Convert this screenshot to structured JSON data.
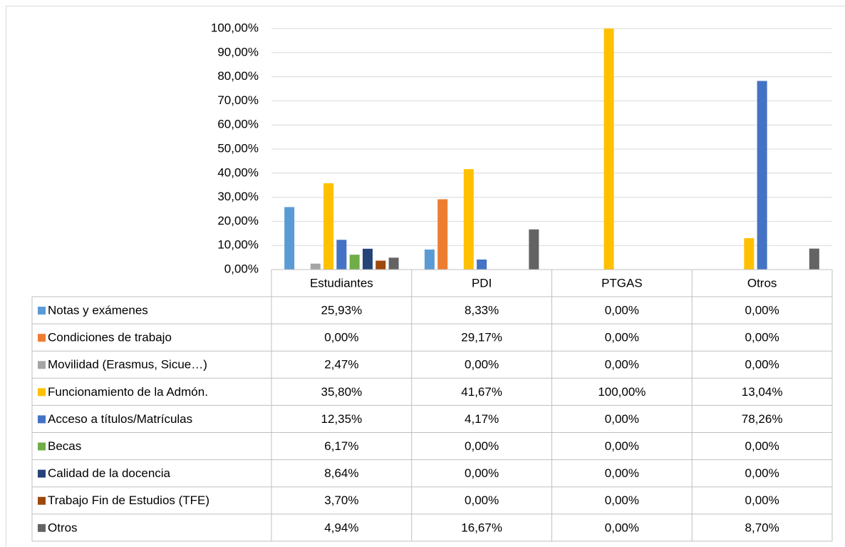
{
  "chart_data": {
    "type": "bar",
    "categories": [
      "Estudiantes",
      "PDI",
      "PTGAS",
      "Otros"
    ],
    "ylim": [
      0,
      100
    ],
    "yticks": [
      {
        "value": 0,
        "label": "0,00%"
      },
      {
        "value": 10,
        "label": "10,00%"
      },
      {
        "value": 20,
        "label": "20,00%"
      },
      {
        "value": 30,
        "label": "30,00%"
      },
      {
        "value": 40,
        "label": "40,00%"
      },
      {
        "value": 50,
        "label": "50,00%"
      },
      {
        "value": 60,
        "label": "60,00%"
      },
      {
        "value": 70,
        "label": "70,00%"
      },
      {
        "value": 80,
        "label": "80,00%"
      },
      {
        "value": 90,
        "label": "90,00%"
      },
      {
        "value": 100,
        "label": "100,00%"
      }
    ],
    "grid": true,
    "series": [
      {
        "name": "Notas y exámenes",
        "color": "#5b9bd5",
        "values": [
          25.93,
          8.33,
          0,
          0
        ],
        "value_labels": [
          "25,93%",
          "8,33%",
          "0,00%",
          "0,00%"
        ]
      },
      {
        "name": "Condiciones de trabajo",
        "color": "#ed7d31",
        "values": [
          0,
          29.17,
          0,
          0
        ],
        "value_labels": [
          "0,00%",
          "29,17%",
          "0,00%",
          "0,00%"
        ]
      },
      {
        "name": "Movilidad (Erasmus, Sicue…)",
        "color": "#a5a5a5",
        "values": [
          2.47,
          0,
          0,
          0
        ],
        "value_labels": [
          "2,47%",
          "0,00%",
          "0,00%",
          "0,00%"
        ]
      },
      {
        "name": "Funcionamiento de la Admón.",
        "color": "#ffc000",
        "values": [
          35.8,
          41.67,
          100,
          13.04
        ],
        "value_labels": [
          "35,80%",
          "41,67%",
          "100,00%",
          "13,04%"
        ]
      },
      {
        "name": "Acceso a títulos/Matrículas",
        "color": "#4472c4",
        "values": [
          12.35,
          4.17,
          0,
          78.26
        ],
        "value_labels": [
          "12,35%",
          "4,17%",
          "0,00%",
          "78,26%"
        ]
      },
      {
        "name": "Becas",
        "color": "#70ad47",
        "values": [
          6.17,
          0,
          0,
          0
        ],
        "value_labels": [
          "6,17%",
          "0,00%",
          "0,00%",
          "0,00%"
        ]
      },
      {
        "name": "Calidad de la docencia",
        "color": "#264478",
        "values": [
          8.64,
          0,
          0,
          0
        ],
        "value_labels": [
          "8,64%",
          "0,00%",
          "0,00%",
          "0,00%"
        ]
      },
      {
        "name": "Trabajo Fin de Estudios (TFE)",
        "color": "#9e480e",
        "values": [
          3.7,
          0,
          0,
          0
        ],
        "value_labels": [
          "3,70%",
          "0,00%",
          "0,00%",
          "0,00%"
        ]
      },
      {
        "name": "Otros",
        "color": "#636363",
        "values": [
          4.94,
          16.67,
          0,
          8.7
        ],
        "value_labels": [
          "4,94%",
          "16,67%",
          "0,00%",
          "8,70%"
        ]
      }
    ]
  }
}
